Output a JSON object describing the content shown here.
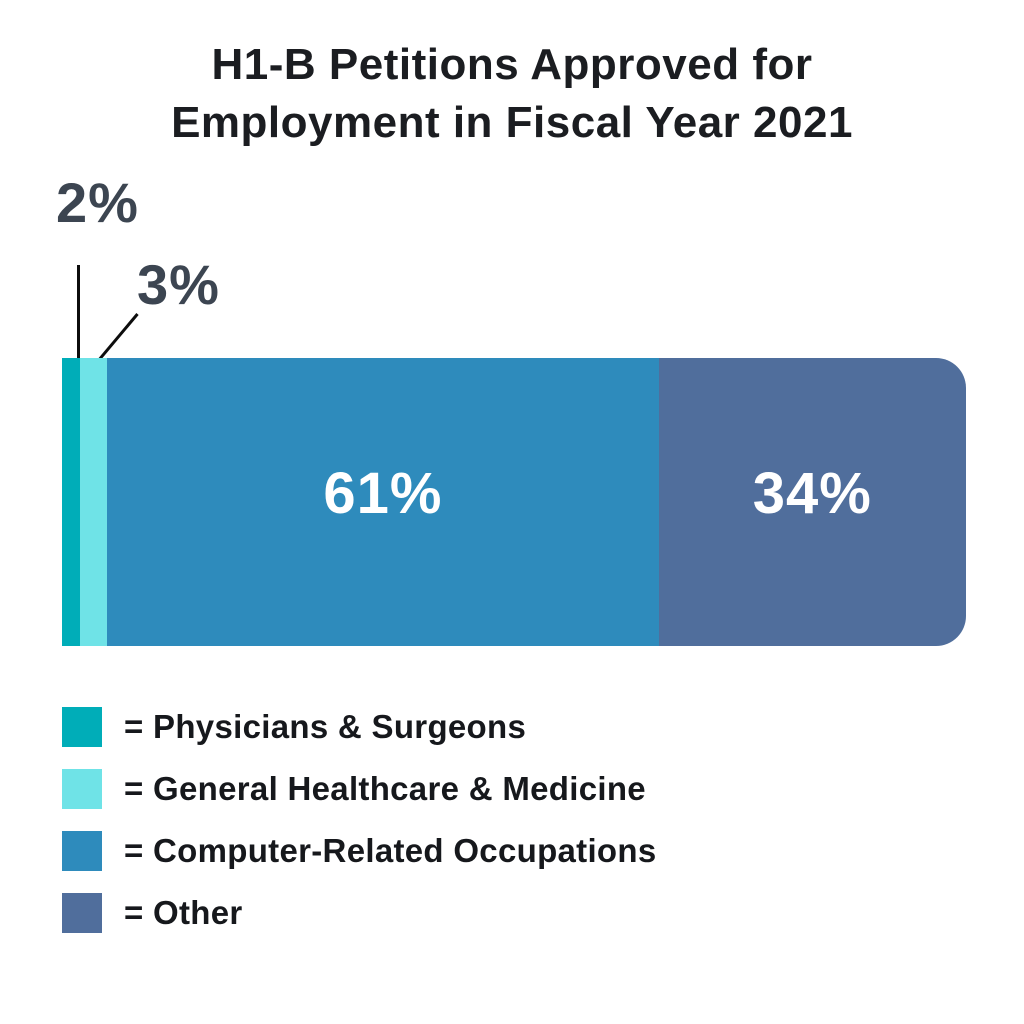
{
  "title": {
    "line1": "H1-B Petitions Approved for",
    "line2": "Employment in Fiscal Year 2021"
  },
  "colors": {
    "teal": "#00ADB8",
    "cyan": "#6FE3E7",
    "blue": "#2E8BBC",
    "slate": "#506E9C",
    "callout_text": "#3C4551",
    "title_text": "#1B1D21",
    "inside_label_text": "#FFFFFF",
    "callout_line": "#0D0D0D",
    "background": "#FFFFFF"
  },
  "chart_data": {
    "type": "bar",
    "variant": "horizontal-stacked-single-bar",
    "title": "H1-B Petitions Approved for Employment in Fiscal Year 2021",
    "categories": [
      "Physicians & Surgeons",
      "General Healthcare & Medicine",
      "Computer-Related Occupations",
      "Other"
    ],
    "values": [
      2,
      3,
      61,
      34
    ],
    "unit": "%",
    "xlim": [
      0,
      100
    ],
    "grid": false,
    "axes_visible": false,
    "legend_position": "bottom-left",
    "segments": [
      {
        "label": "Physicians & Surgeons",
        "value": 2,
        "display": "2%",
        "color": "#00ADB8",
        "css_width": "2%",
        "label_placement": "callout-above"
      },
      {
        "label": "General Healthcare & Medicine",
        "value": 3,
        "display": "3%",
        "color": "#6FE3E7",
        "css_width": "3%",
        "label_placement": "callout-above"
      },
      {
        "label": "Computer-Related Occupations",
        "value": 61,
        "display": "61%",
        "color": "#2E8BBC",
        "css_width": "61%",
        "label_placement": "inside"
      },
      {
        "label": "Other",
        "value": 34,
        "display": "34%",
        "color": "#506E9C",
        "css_width": "34%",
        "label_placement": "inside"
      }
    ]
  },
  "legend": {
    "items": [
      {
        "label": "= Physicians & Surgeons",
        "color": "#00ADB8"
      },
      {
        "label": "= General Healthcare & Medicine",
        "color": "#6FE3E7"
      },
      {
        "label": "= Computer-Related Occupations",
        "color": "#2E8BBC"
      },
      {
        "label": "= Other",
        "color": "#506E9C"
      }
    ]
  }
}
